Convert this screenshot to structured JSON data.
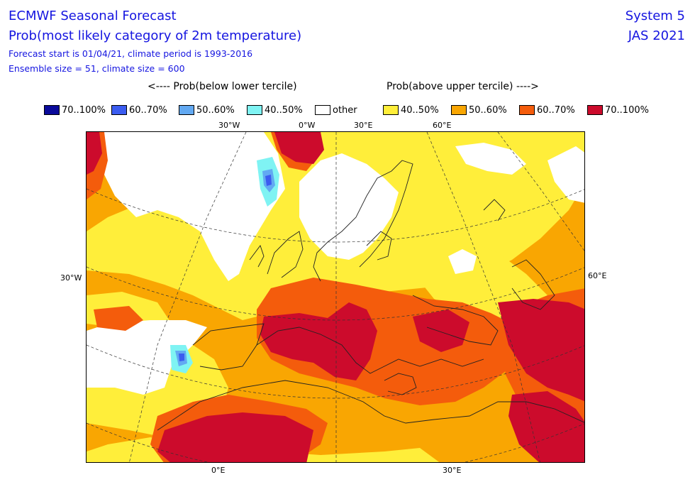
{
  "header": {
    "title_line1": "ECMWF Seasonal Forecast",
    "title_line2": "Prob(most likely category of 2m temperature)",
    "meta_line1": "Forecast start is 01/04/21, climate period is 1993-2016",
    "meta_line2": "Ensemble size = 51, climate size = 600",
    "system": "System 5",
    "period": "JAS 2021"
  },
  "legend": {
    "left_title": "<---- Prob(below lower tercile)",
    "right_title": "Prob(above upper tercile) ---->",
    "items": [
      {
        "label": "70..100%",
        "color": "#0a0a9a"
      },
      {
        "label": "60..70%",
        "color": "#3b5cf0"
      },
      {
        "label": "50..60%",
        "color": "#62a9f2"
      },
      {
        "label": "40..50%",
        "color": "#7ff3f3"
      },
      {
        "label": "other",
        "color": "#ffffff"
      },
      {
        "label": "40..50%",
        "color": "#ffee3a"
      },
      {
        "label": "50..60%",
        "color": "#f9a602"
      },
      {
        "label": "60..70%",
        "color": "#f45c0c"
      },
      {
        "label": "70..100%",
        "color": "#cc0b2c"
      }
    ]
  },
  "axis_labels": {
    "top": [
      "30°W",
      "0°W",
      "30°E",
      "60°E"
    ],
    "left": "30°W",
    "right": "60°E",
    "bottom": [
      "0°E",
      "30°E"
    ]
  }
}
